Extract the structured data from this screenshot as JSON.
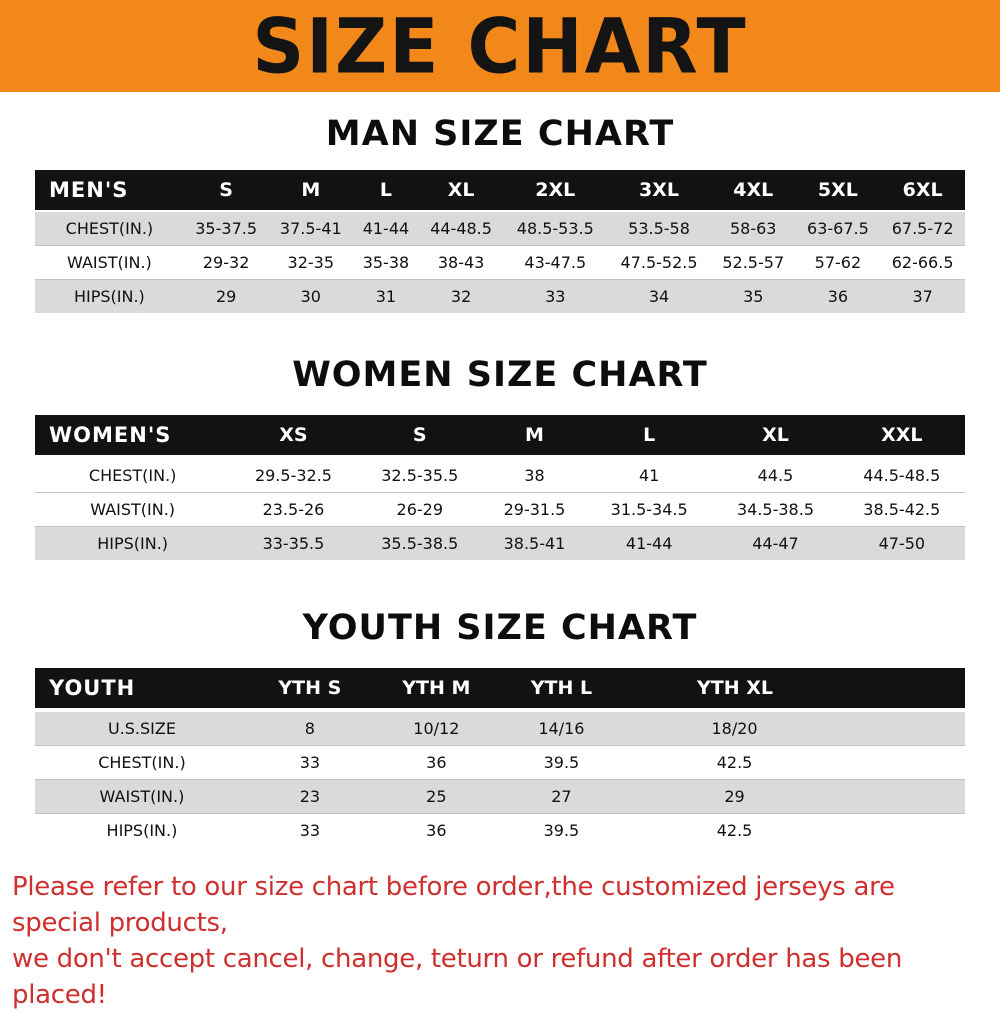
{
  "banner": {
    "title": "SIZE CHART",
    "bg_color": "#f2881a",
    "text_color": "#141414"
  },
  "colors": {
    "header_row_bg": "#121212",
    "stripe_gray": "#dadada",
    "footer_red": "#cf2f2f"
  },
  "sections": [
    {
      "heading": "MAN SIZE CHART",
      "table": {
        "header": [
          "MEN'S",
          "S",
          "M",
          "L",
          "XL",
          "2XL",
          "3XL",
          "4XL",
          "5XL",
          "6XL"
        ],
        "rows": [
          [
            "CHEST(IN.)",
            "35-37.5",
            "37.5-41",
            "41-44",
            "44-48.5",
            "48.5-53.5",
            "53.5-58",
            "58-63",
            "63-67.5",
            "67.5-72"
          ],
          [
            "WAIST(IN.)",
            "29-32",
            "32-35",
            "35-38",
            "38-43",
            "43-47.5",
            "47.5-52.5",
            "52.5-57",
            "57-62",
            "62-66.5"
          ],
          [
            "HIPS(IN.)",
            "29",
            "30",
            "31",
            "32",
            "33",
            "34",
            "35",
            "36",
            "37"
          ]
        ]
      }
    },
    {
      "heading": "WOMEN SIZE CHART",
      "table": {
        "header": [
          "WOMEN'S",
          "XS",
          "S",
          "M",
          "L",
          "XL",
          "XXL"
        ],
        "rows": [
          [
            "CHEST(IN.)",
            "29.5-32.5",
            "32.5-35.5",
            "38",
            "41",
            "44.5",
            "44.5-48.5"
          ],
          [
            "WAIST(IN.)",
            "23.5-26",
            "26-29",
            "29-31.5",
            "31.5-34.5",
            "34.5-38.5",
            "38.5-42.5"
          ],
          [
            "HIPS(IN.)",
            "33-35.5",
            "35.5-38.5",
            "38.5-41",
            "41-44",
            "44-47",
            "47-50"
          ]
        ]
      }
    },
    {
      "heading": "YOUTH SIZE CHART",
      "table": {
        "header": [
          "YOUTH",
          "YTH S",
          "YTH M",
          "YTH L",
          "YTH XL"
        ],
        "rows": [
          [
            "U.S.SIZE",
            "8",
            "10/12",
            "14/16",
            "18/20"
          ],
          [
            "CHEST(IN.)",
            "33",
            "36",
            "39.5",
            "42.5"
          ],
          [
            "WAIST(IN.)",
            "23",
            "25",
            "27",
            "29"
          ],
          [
            "HIPS(IN.)",
            "33",
            "36",
            "39.5",
            "42.5"
          ]
        ]
      }
    }
  ],
  "footer": {
    "line1": "Please refer to our size chart before order,the customized jerseys are special products,",
    "line2": "we don't accept cancel, change, teturn or refund after order has been placed!"
  }
}
